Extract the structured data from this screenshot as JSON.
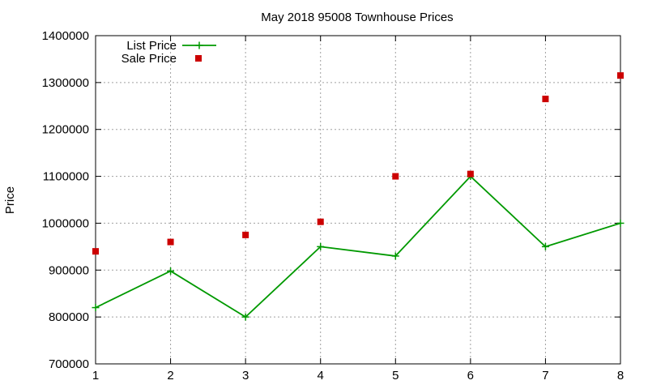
{
  "chart_data": {
    "type": "line",
    "title": "May 2018 95008 Townhouse Prices",
    "xlabel": "",
    "ylabel": "Price",
    "xlim": [
      1,
      8
    ],
    "ylim": [
      700000,
      1400000
    ],
    "x_ticks": [
      "1",
      "2",
      "3",
      "4",
      "5",
      "6",
      "7",
      "8"
    ],
    "y_ticks": [
      "700000",
      "800000",
      "900000",
      "1000000",
      "1100000",
      "1200000",
      "1300000",
      "1400000"
    ],
    "grid": true,
    "legend_position": "top-left",
    "x": [
      1,
      2,
      3,
      4,
      5,
      6,
      7,
      8
    ],
    "series": [
      {
        "name": "List Price",
        "style": "line-with-plus-markers",
        "color": "#009900",
        "values": [
          820000,
          898000,
          800000,
          950000,
          930000,
          1100000,
          950000,
          1000000
        ]
      },
      {
        "name": "Sale Price",
        "style": "square-markers",
        "color": "#cc0000",
        "values": [
          940000,
          960000,
          975000,
          1003000,
          1100000,
          1105000,
          1265000,
          1315000
        ]
      }
    ]
  }
}
